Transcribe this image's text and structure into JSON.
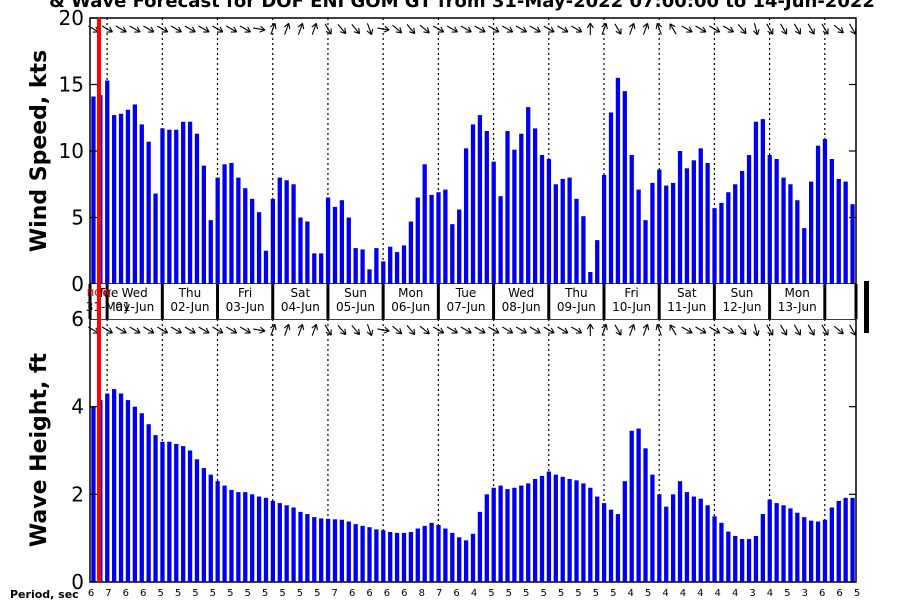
{
  "title": "& Wave Forecast for DOF ENI GOM GT from 31-May-2022 07:00:00 to 14-Jun-2022",
  "colors": {
    "bar": "#0000ee",
    "now_line": "#ff0000",
    "axis": "#000000",
    "grid": "#000000"
  },
  "now_label": "now",
  "period_label": "Period, sec",
  "chart_data": [
    {
      "type": "bar",
      "name": "wind",
      "ylabel": "Wind Speed, kts",
      "ylim": [
        0,
        20
      ],
      "yticks": [
        0,
        5,
        10,
        15,
        20
      ],
      "grid": "vertical dotted day separators",
      "values": [
        14.1,
        14.2,
        15.3,
        12.7,
        12.8,
        13.1,
        13.5,
        12.0,
        10.7,
        6.8,
        11.7,
        11.6,
        11.6,
        12.2,
        12.2,
        11.3,
        8.9,
        4.8,
        8.0,
        9.0,
        9.1,
        8.0,
        7.2,
        6.4,
        5.4,
        2.5,
        6.4,
        8.0,
        7.8,
        7.5,
        5.0,
        4.7,
        2.3,
        2.3,
        6.5,
        5.8,
        6.3,
        5.0,
        2.7,
        2.6,
        1.1,
        2.7,
        1.7,
        2.8,
        2.4,
        2.9,
        4.7,
        6.5,
        9.0,
        6.7,
        6.9,
        7.1,
        4.5,
        5.6,
        10.2,
        12.0,
        12.7,
        11.5,
        9.2,
        6.6,
        11.5,
        10.1,
        11.3,
        13.3,
        11.7,
        9.7,
        9.4,
        7.5,
        7.9,
        8.0,
        6.4,
        5.1,
        0.9,
        3.3,
        8.2,
        12.9,
        15.5,
        14.5,
        9.7,
        7.1,
        4.8,
        7.6,
        8.6,
        7.4,
        7.6,
        10.0,
        8.7,
        9.3,
        10.2,
        9.1,
        5.7,
        6.1,
        6.9,
        7.5,
        8.5,
        9.7,
        12.2,
        12.4,
        9.7,
        9.4,
        8.0,
        7.5,
        6.3,
        4.2,
        7.7,
        10.4,
        10.9,
        9.4,
        7.9,
        7.7,
        6.0
      ],
      "arrow_deg": [
        300,
        300,
        300,
        300,
        300,
        300,
        300,
        300,
        300,
        300,
        300,
        305,
        300,
        300,
        300,
        300,
        300,
        300,
        300,
        300,
        300,
        300,
        300,
        300,
        280,
        270,
        200,
        200,
        200,
        315,
        200,
        190,
        200,
        330,
        330,
        330,
        320,
        320,
        320,
        330,
        340,
        320,
        280,
        300,
        310,
        310,
        320,
        320,
        310,
        300,
        300,
        300,
        300,
        300,
        300,
        300,
        300,
        300,
        300,
        300,
        300,
        300,
        300,
        300,
        300,
        300,
        300,
        300,
        300,
        300,
        300,
        300,
        180,
        180,
        200,
        210,
        330,
        20,
        200,
        180,
        200,
        320,
        160,
        200,
        150,
        300,
        300,
        300,
        300,
        300,
        300,
        300,
        300,
        310,
        320,
        330,
        345,
        350,
        330,
        340,
        330,
        300,
        330,
        330,
        330,
        330,
        330,
        320,
        310,
        315,
        330
      ]
    },
    {
      "type": "bar",
      "name": "wave",
      "ylabel": "Wave Height, ft",
      "ylim": [
        0,
        6
      ],
      "yticks": [
        0,
        2,
        4,
        6
      ],
      "grid": "vertical dotted day separators",
      "values": [
        4.0,
        4.15,
        4.3,
        4.4,
        4.3,
        4.15,
        4.0,
        3.85,
        3.6,
        3.35,
        3.2,
        3.2,
        3.15,
        3.1,
        3.0,
        2.8,
        2.6,
        2.45,
        2.3,
        2.2,
        2.1,
        2.05,
        2.05,
        2.0,
        1.95,
        1.92,
        1.85,
        1.8,
        1.75,
        1.7,
        1.6,
        1.55,
        1.48,
        1.45,
        1.44,
        1.43,
        1.42,
        1.38,
        1.32,
        1.28,
        1.25,
        1.2,
        1.18,
        1.14,
        1.12,
        1.12,
        1.14,
        1.22,
        1.28,
        1.35,
        1.3,
        1.22,
        1.12,
        1.02,
        0.95,
        1.1,
        1.6,
        2.0,
        2.15,
        2.2,
        2.12,
        2.15,
        2.2,
        2.25,
        2.35,
        2.42,
        2.52,
        2.45,
        2.4,
        2.35,
        2.32,
        2.25,
        2.15,
        1.95,
        1.8,
        1.65,
        1.55,
        2.3,
        3.45,
        3.5,
        3.05,
        2.45,
        2.0,
        1.72,
        2.0,
        2.3,
        2.05,
        1.95,
        1.9,
        1.75,
        1.5,
        1.35,
        1.15,
        1.05,
        0.98,
        0.98,
        1.05,
        1.55,
        1.88,
        1.8,
        1.75,
        1.68,
        1.58,
        1.48,
        1.4,
        1.38,
        1.42,
        1.7,
        1.85,
        1.92,
        1.92
      ]
    }
  ],
  "days": [
    {
      "dow": "Tue",
      "date": "31-May"
    },
    {
      "dow": "Wed",
      "date": "01-Jun"
    },
    {
      "dow": "Thu",
      "date": "02-Jun"
    },
    {
      "dow": "Fri",
      "date": "03-Jun"
    },
    {
      "dow": "Sat",
      "date": "04-Jun"
    },
    {
      "dow": "Sun",
      "date": "05-Jun"
    },
    {
      "dow": "Mon",
      "date": "06-Jun"
    },
    {
      "dow": "Tue",
      "date": "07-Jun"
    },
    {
      "dow": "Wed",
      "date": "08-Jun"
    },
    {
      "dow": "Thu",
      "date": "09-Jun"
    },
    {
      "dow": "Fri",
      "date": "10-Jun"
    },
    {
      "dow": "Sat",
      "date": "11-Jun"
    },
    {
      "dow": "Sun",
      "date": "12-Jun"
    },
    {
      "dow": "Mon",
      "date": "13-Jun"
    }
  ],
  "periods": [
    "6",
    "7",
    "6",
    "6",
    "5",
    "5",
    "5",
    "5",
    "5",
    "5",
    "5",
    "5",
    "5",
    "5",
    "7",
    "6",
    "6",
    "6",
    "6",
    "8",
    "7",
    "6",
    "4",
    "5",
    "5",
    "5",
    "5",
    "5",
    "5",
    "5",
    "5",
    "4",
    "5",
    "4",
    "4",
    "4",
    "4",
    "4",
    "3",
    "4",
    "5",
    "3",
    "6",
    "6",
    "5"
  ],
  "start_offset": 0.31
}
